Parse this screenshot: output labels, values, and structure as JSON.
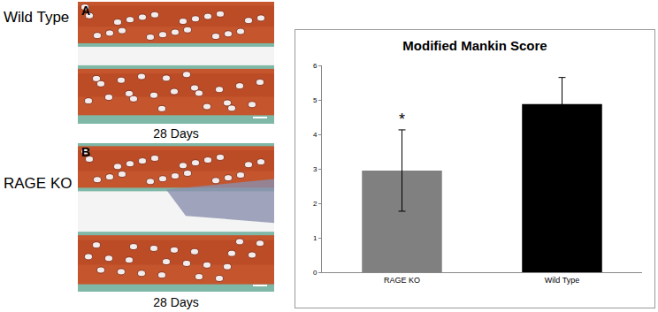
{
  "panels": [
    {
      "label": "A",
      "row_label": "Wild Type",
      "caption": "28 Days"
    },
    {
      "label": "B",
      "row_label": "RAGE KO",
      "caption": "28 Days"
    }
  ],
  "chart_data": {
    "type": "bar",
    "title": "Modified Mankin Score",
    "categories": [
      "RAGE KO",
      "Wild Type"
    ],
    "values": [
      2.95,
      4.88
    ],
    "errors": [
      1.18,
      0.77
    ],
    "colors": [
      "#808080",
      "#000000"
    ],
    "ylim": [
      0,
      6
    ],
    "yticks": [
      0,
      1,
      2,
      3,
      4,
      5,
      6
    ],
    "grid": false,
    "annotations": [
      {
        "category": "RAGE KO",
        "text": "*"
      }
    ]
  }
}
